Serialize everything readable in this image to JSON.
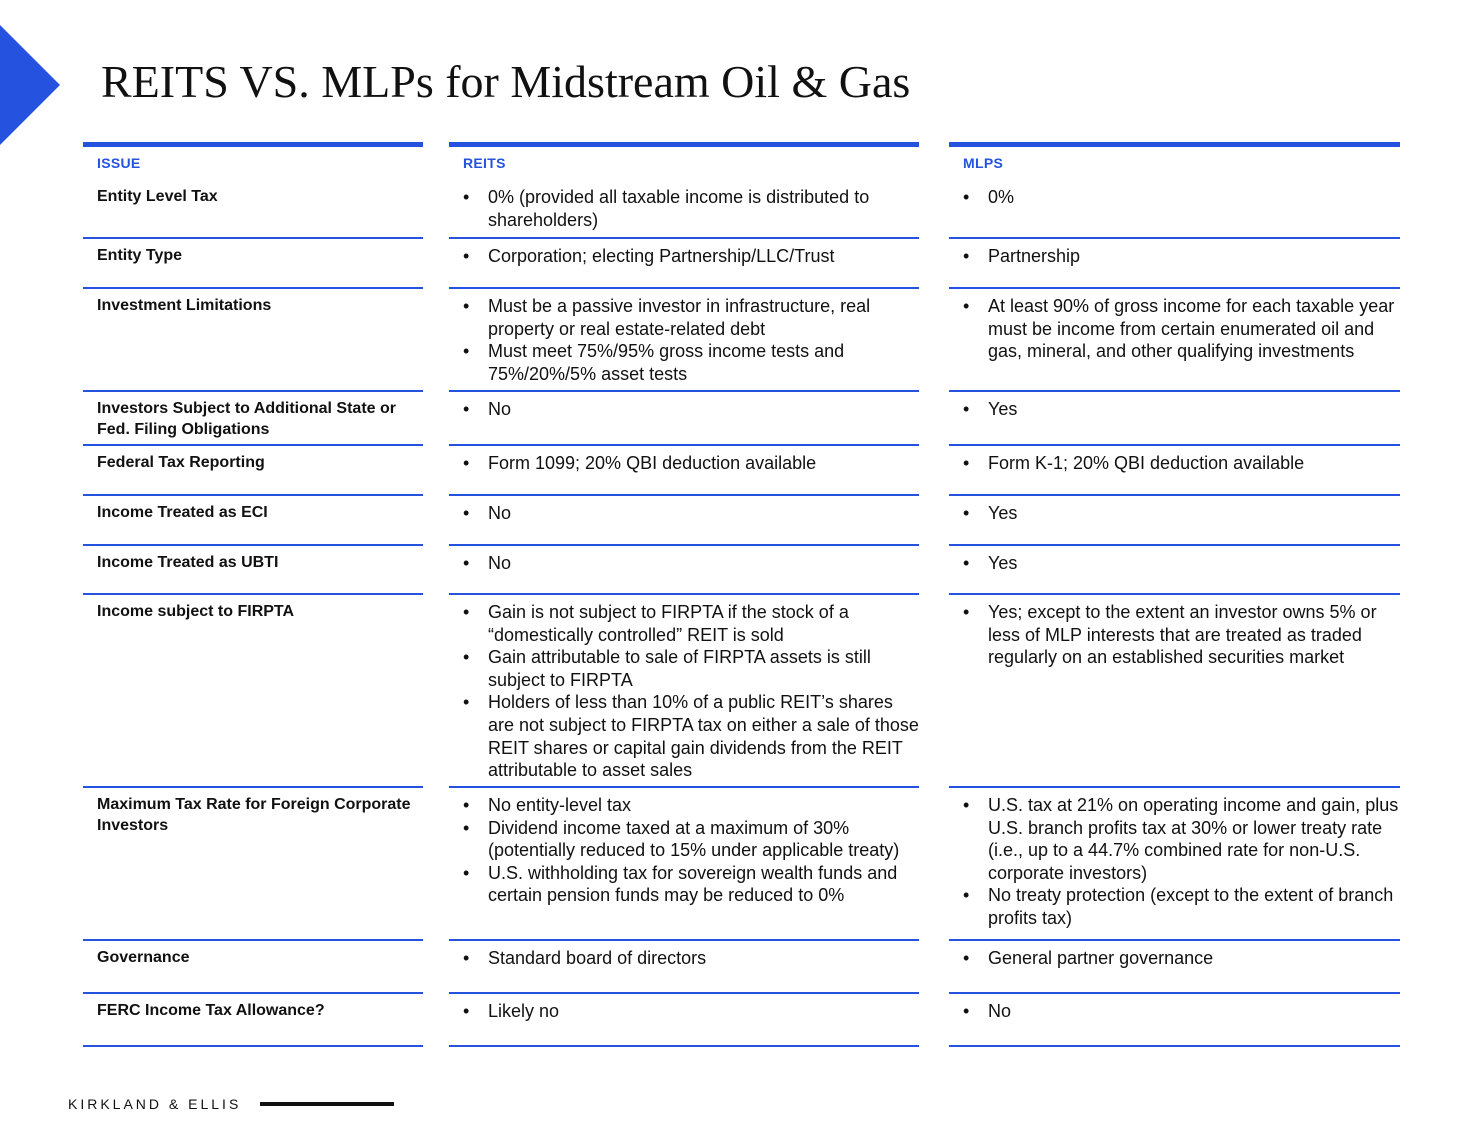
{
  "title": "REITS VS. MLPs for Midstream Oil & Gas",
  "accent_color": "#2553e0",
  "columns": {
    "issue": "ISSUE",
    "reits": "REITS",
    "mlps": "MLPS"
  },
  "rows": [
    {
      "issue": "Entity Level Tax",
      "reits": [
        "0% (provided all taxable income is distributed to shareholders)"
      ],
      "mlps": [
        "0%"
      ]
    },
    {
      "issue": "Entity Type",
      "reits": [
        "Corporation; electing Partnership/LLC/Trust"
      ],
      "mlps": [
        "Partnership"
      ]
    },
    {
      "issue": "Investment Limitations",
      "reits": [
        "Must be a passive investor in infrastructure, real property or real estate-related debt",
        "Must meet 75%/95% gross income tests and 75%/20%/5% asset tests"
      ],
      "mlps": [
        "At least 90% of gross income for each taxable year must be income from certain enumerated oil and gas, mineral, and other qualifying investments"
      ]
    },
    {
      "issue": "Investors Subject to Additional State or Fed. Filing Obligations",
      "reits": [
        "No"
      ],
      "mlps": [
        "Yes"
      ]
    },
    {
      "issue": "Federal Tax Reporting",
      "reits": [
        "Form 1099; 20% QBI deduction available"
      ],
      "mlps": [
        "Form K-1; 20% QBI deduction available"
      ]
    },
    {
      "issue": "Income Treated as ECI",
      "reits": [
        "No"
      ],
      "mlps": [
        "Yes"
      ]
    },
    {
      "issue": "Income Treated as UBTI",
      "reits": [
        "No"
      ],
      "mlps": [
        "Yes"
      ]
    },
    {
      "issue": "Income subject to FIRPTA",
      "reits": [
        "Gain is not subject to FIRPTA if the stock of a “domestically controlled” REIT is sold",
        "Gain attributable to sale of FIRPTA assets is still subject to FIRPTA",
        "Holders of less than 10% of a public REIT’s shares are not subject to FIRPTA tax on either a sale of those REIT shares or capital gain dividends from the REIT attributable to asset sales"
      ],
      "mlps": [
        "Yes; except to the extent an investor owns 5% or less of MLP interests that are treated as traded regularly on an established securities market"
      ]
    },
    {
      "issue": "Maximum Tax Rate for Foreign Corporate Investors",
      "reits": [
        "No entity-level tax",
        "Dividend income taxed at a maximum  of 30% (potentially reduced to 15% under applicable treaty)",
        "U.S. withholding tax for sovereign wealth funds and certain pension funds may be reduced to 0%"
      ],
      "mlps": [
        "U.S. tax at 21% on operating income and gain, plus U.S. branch profits tax at 30% or lower treaty rate (i.e., up to a 44.7% combined rate for non-U.S. corporate investors)",
        "No treaty protection (except to the extent of branch profits tax)"
      ]
    },
    {
      "issue": "Governance",
      "reits": [
        "Standard board of directors"
      ],
      "mlps": [
        "General partner governance"
      ]
    },
    {
      "issue": "FERC Income Tax Allowance?",
      "reits": [
        "Likely no"
      ],
      "mlps": [
        "No"
      ]
    }
  ],
  "footer": {
    "brand": "KIRKLAND & ELLIS"
  }
}
